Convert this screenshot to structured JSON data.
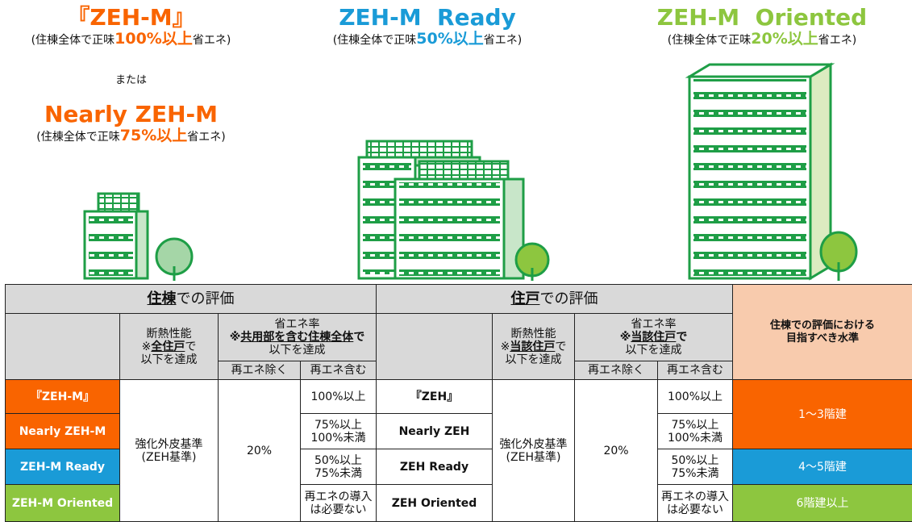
{
  "levels": [
    {
      "title": "『ZEH-M』",
      "subtitle": [
        "(住棟全体で正味",
        "100%以上",
        "省エネ)"
      ]
    },
    {
      "title": "ZEH-M  Ready",
      "subtitle": [
        "(住棟全体で正味",
        "50%以上",
        "省エネ)"
      ]
    },
    {
      "title": "ZEH-M  Oriented",
      "subtitle": [
        "(住棟全体で正味",
        "20%以上",
        "省エネ)"
      ]
    }
  ],
  "or_text": "または",
  "alt_level": {
    "title": "Nearly ZEH-M",
    "subtitle": [
      "(住棟全体で正味",
      "75%以上",
      "省エネ)"
    ]
  },
  "table": {
    "building": {
      "title": [
        "住棟",
        "での評価"
      ],
      "insulation": [
        "断熱性能",
        [
          "※",
          "全住戸",
          "で"
        ],
        "以下を達成"
      ],
      "savings": [
        "省エネ率",
        [
          "※",
          "共用部を含む住棟全体",
          "で"
        ],
        "以下を達成"
      ],
      "excl": "再エネ除く",
      "incl": "再エネ含む"
    },
    "unit": {
      "title": [
        "住戸",
        "での評価"
      ],
      "insulation": [
        "断熱性能",
        [
          "※",
          "当該住戸",
          "で"
        ],
        "以下を達成"
      ],
      "savings": [
        "省エネ率",
        [
          "※",
          "当該住戸",
          "で"
        ],
        "以下を達成"
      ],
      "excl": "再エネ除く",
      "incl": "再エネ含む"
    },
    "target_header": [
      "住棟での評価における",
      "目指すべき水準"
    ],
    "standard": [
      "強化外皮基準",
      "(ZEH基準)"
    ],
    "rate": "20%",
    "rows": [
      {
        "building_label": "『ZEH-M』",
        "unit_label": "『ZEH』",
        "incl": [
          "100%以上"
        ]
      },
      {
        "building_label": "Nearly ZEH-M",
        "unit_label": "Nearly ZEH",
        "incl": [
          "75%以上",
          "100%未満"
        ]
      },
      {
        "building_label": "ZEH-M Ready",
        "unit_label": "ZEH Ready",
        "incl": [
          "50%以上",
          "75%未満"
        ]
      },
      {
        "building_label": "ZEH-M Oriented",
        "unit_label": "ZEH Oriented",
        "incl": [
          "再エネの導入",
          "は必要ない"
        ]
      }
    ],
    "targets": [
      "1～3階建",
      "4～5階建",
      "6階建以上"
    ]
  }
}
